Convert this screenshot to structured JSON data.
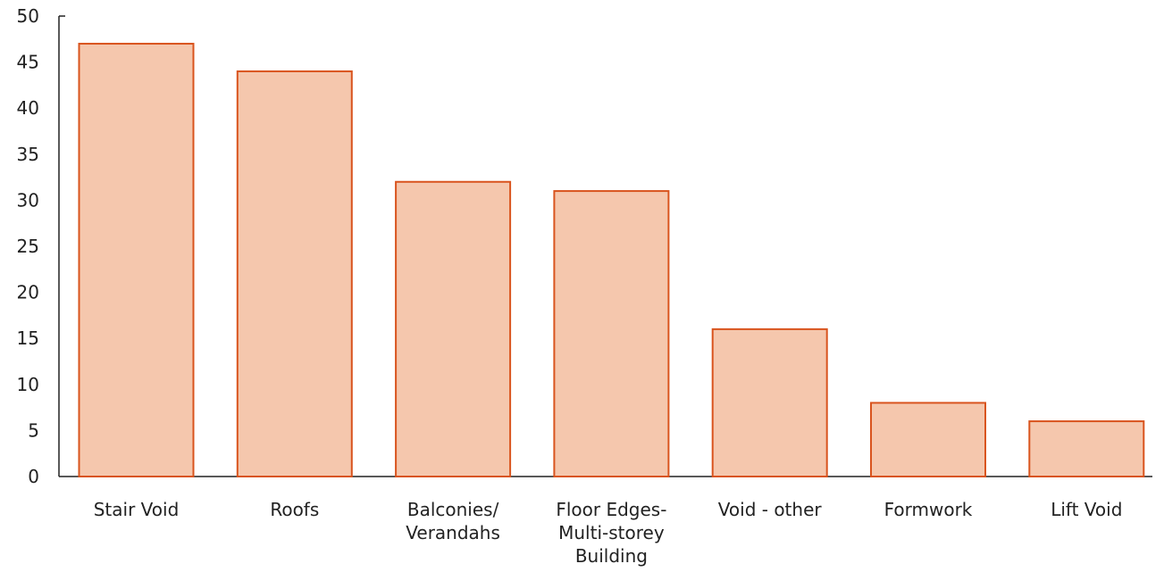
{
  "chart_data": {
    "type": "bar",
    "categories": [
      [
        "Stair Void"
      ],
      [
        "Roofs"
      ],
      [
        "Balconies/",
        "Verandahs"
      ],
      [
        "Floor Edges-",
        "Multi-storey",
        "Building"
      ],
      [
        "Void - other"
      ],
      [
        "Formwork"
      ],
      [
        "Lift Void"
      ]
    ],
    "values": [
      47,
      44,
      32,
      31,
      16,
      8,
      6
    ],
    "title": "",
    "xlabel": "",
    "ylabel": "",
    "ylim": [
      0,
      50
    ],
    "yticks": [
      "0",
      "5",
      "10",
      "15",
      "20",
      "25",
      "30",
      "35",
      "40",
      "45",
      "50"
    ],
    "grid": false,
    "colors": {
      "bar_fill": "#f5c7ad",
      "bar_stroke": "#d9541e",
      "axis": "#222222"
    }
  }
}
